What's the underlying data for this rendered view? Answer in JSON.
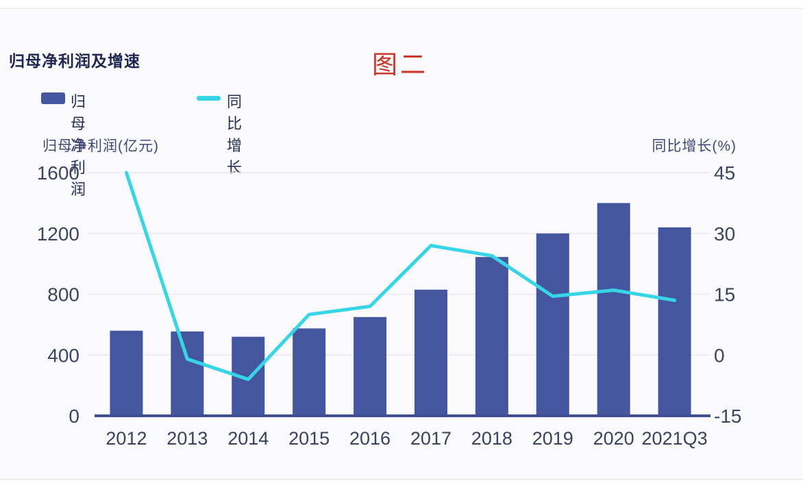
{
  "page": {
    "title": "归母净利润及增速",
    "figure_label": "图二"
  },
  "legend": {
    "items": [
      {
        "label": "归母净利润",
        "swatch": "bar-swatch",
        "color": "#4556a0"
      },
      {
        "label": "同比增长",
        "swatch": "line-swatch",
        "color": "#36d6e7"
      }
    ]
  },
  "chart_data": {
    "type": "bar+line",
    "title": "归母净利润及增速",
    "figure_label": "图二",
    "categories": [
      "2012",
      "2013",
      "2014",
      "2015",
      "2016",
      "2017",
      "2018",
      "2019",
      "2020",
      "2021Q3"
    ],
    "series": [
      {
        "name": "归母净利润",
        "type": "bar",
        "axis": "left",
        "unit": "亿元",
        "color": "#4556a0",
        "values": [
          560,
          555,
          520,
          575,
          650,
          830,
          1045,
          1200,
          1400,
          1240
        ]
      },
      {
        "name": "同比增长",
        "type": "line",
        "axis": "right",
        "unit": "%",
        "color": "#36d6e7",
        "values": [
          45,
          -1,
          -6,
          10,
          12,
          27,
          24.5,
          14.5,
          16,
          13.5
        ]
      }
    ],
    "left_axis": {
      "label": "归母净利润(亿元)",
      "ticks": [
        1600,
        1200,
        800,
        400,
        0
      ],
      "min": 0,
      "max": 1600
    },
    "right_axis": {
      "label": "同比增长(%)",
      "ticks": [
        45,
        30,
        15,
        0,
        -15
      ],
      "min": -15,
      "max": 45
    },
    "legend_position": "top-left",
    "grid": true,
    "grid_color": "#e7e9ef",
    "baseline_color": "#3f4c96"
  }
}
